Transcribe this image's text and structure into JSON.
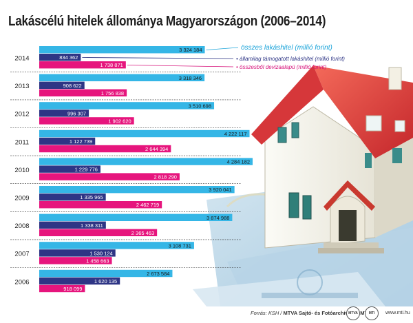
{
  "title": "Lakáscélú hitelek állománya Magyarországon (2006–2014)",
  "source_prefix": "Forrás: KSH / ",
  "source_bold": "MTVA Sajtó- és Fotóarchívum / MTI",
  "website": "www.mti.hu",
  "logos": [
    "MTVA",
    "MTI"
  ],
  "colors": {
    "total": "#35b6e6",
    "state": "#2e3585",
    "fx": "#e6157d",
    "legend_total": "#1aa3d9",
    "legend_fx": "#d6127a",
    "separator": "#333333"
  },
  "chart_data": {
    "type": "bar",
    "orientation": "horizontal",
    "title": "Lakáscélú hitelek állománya Magyarországon (2006–2014)",
    "categories": [
      "2014",
      "2013",
      "2012",
      "2011",
      "2010",
      "2009",
      "2008",
      "2007",
      "2006"
    ],
    "series": [
      {
        "name": "összes lakáshitel (millió forint)",
        "values": [
          3324184,
          3318346,
          3510698,
          4222117,
          4284182,
          3920041,
          3874988,
          3108731,
          2673584
        ],
        "labels": [
          "3 324 184",
          "3 318 346",
          "3 510 698",
          "4 222 117",
          "4 284 182",
          "3 920 041",
          "3 874 988",
          "3 108 731",
          "2 673 584"
        ]
      },
      {
        "name": "• államilag támogatott lakáshitel (millió forint)",
        "values": [
          834362,
          908622,
          996307,
          1122739,
          1229776,
          1335965,
          1338311,
          1530124,
          1620135
        ],
        "labels": [
          "834 362",
          "908 622",
          "996 307",
          "1 122 739",
          "1 229 776",
          "1 335 965",
          "1 338 311",
          "1 530 124",
          "1 620 135"
        ]
      },
      {
        "name": "• összesből devizaalapú (millió forint)",
        "values": [
          1738871,
          1756838,
          1902620,
          2644394,
          2818290,
          2462719,
          2365463,
          1458663,
          918099
        ],
        "labels": [
          "1 738 871",
          "1 756 838",
          "1 902 620",
          "2 644 394",
          "2 818 290",
          "2 462 719",
          "2 365 463",
          "1 458 663",
          "918 099"
        ]
      }
    ],
    "legend_placement": "right of the 2014 bars"
  }
}
